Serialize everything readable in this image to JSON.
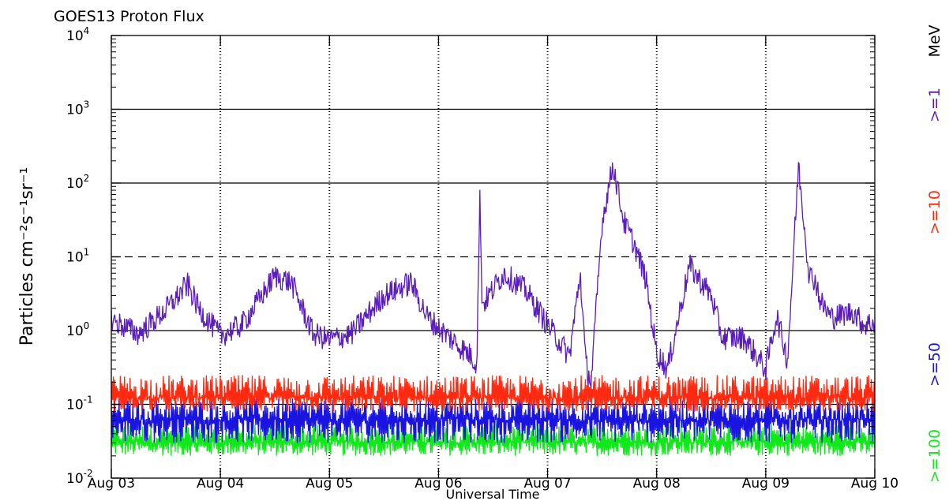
{
  "chart_data": {
    "type": "line",
    "title": "GOES13 Proton Flux",
    "xlabel": "Universal Time",
    "ylabel": "Particles cm⁻²s⁻¹sr⁻¹",
    "yscale": "log",
    "ylim": [
      0.01,
      10000
    ],
    "y_ticks": [
      {
        "value": 10000,
        "label_base": "10",
        "label_exp": "4"
      },
      {
        "value": 1000,
        "label_base": "10",
        "label_exp": "3"
      },
      {
        "value": 100,
        "label_base": "10",
        "label_exp": "2"
      },
      {
        "value": 10,
        "label_base": "10",
        "label_exp": "1"
      },
      {
        "value": 1,
        "label_base": "10",
        "label_exp": "0"
      },
      {
        "value": 0.1,
        "label_base": "10",
        "label_exp": "-1"
      },
      {
        "value": 0.01,
        "label_base": "10",
        "label_exp": "-2"
      }
    ],
    "x_ticks": [
      "Aug 03",
      "Aug 04",
      "Aug 05",
      "Aug 06",
      "Aug 07",
      "Aug 08",
      "Aug 09",
      "Aug 10"
    ],
    "xlim": [
      0,
      7
    ],
    "reference_lines": [
      {
        "value": 1000,
        "style": "solid"
      },
      {
        "value": 100,
        "style": "solid"
      },
      {
        "value": 10,
        "style": "dashed"
      },
      {
        "value": 1,
        "style": "solid"
      },
      {
        "value": 0.1,
        "style": "solid"
      }
    ],
    "legend_placement": "right (vertical)",
    "series": [
      {
        "name": ">=1",
        "unit": "MeV",
        "color": "#5a1fb8",
        "x": [
          0,
          0.25,
          0.5,
          0.7,
          0.8,
          1.0,
          1.2,
          1.5,
          1.65,
          1.85,
          2.0,
          2.2,
          2.5,
          2.75,
          2.9,
          3.1,
          3.3,
          3.35,
          3.38,
          3.4,
          3.6,
          3.8,
          4.0,
          4.2,
          4.3,
          4.35,
          4.4,
          4.5,
          4.6,
          4.7,
          4.8,
          4.9,
          5.0,
          5.1,
          5.3,
          5.5,
          5.6,
          5.8,
          6.0,
          6.1,
          6.2,
          6.3,
          6.4,
          6.45,
          6.48,
          6.5,
          6.6,
          6.8,
          6.9,
          7.0
        ],
        "y": [
          1.4,
          0.9,
          1.9,
          4.2,
          2.0,
          0.85,
          1.2,
          5.5,
          4.5,
          0.9,
          0.75,
          0.9,
          3.0,
          4.5,
          1.5,
          0.8,
          0.45,
          0.35,
          70,
          2.2,
          6.0,
          3.5,
          1.2,
          0.45,
          6.0,
          0.35,
          0.2,
          30,
          180,
          30,
          14,
          5.0,
          0.5,
          0.3,
          7.5,
          3.0,
          0.8,
          0.8,
          0.3,
          1.6,
          0.4,
          170,
          5.5,
          5.0,
          3.5,
          2.5,
          1.5,
          1.8,
          1.2,
          1.3
        ]
      },
      {
        "name": ">=10",
        "color": "#ff2a10",
        "typical": 0.12,
        "range": [
          0.08,
          0.25
        ]
      },
      {
        "name": ">=50",
        "color": "#1a14e0",
        "typical": 0.06,
        "range": [
          0.03,
          0.12
        ]
      },
      {
        "name": ">=100",
        "color": "#10e81a",
        "typical": 0.03,
        "range": [
          0.02,
          0.055
        ]
      }
    ],
    "legend": [
      {
        "label": ">=100",
        "color": "#10e81a"
      },
      {
        "label": ">=50",
        "color": "#1a14e0"
      },
      {
        "label": ">=10",
        "color": "#ff2a10"
      },
      {
        "label": ">=1",
        "color": "#5a1fb8"
      },
      {
        "label": "MeV",
        "color": "#000000"
      }
    ]
  }
}
